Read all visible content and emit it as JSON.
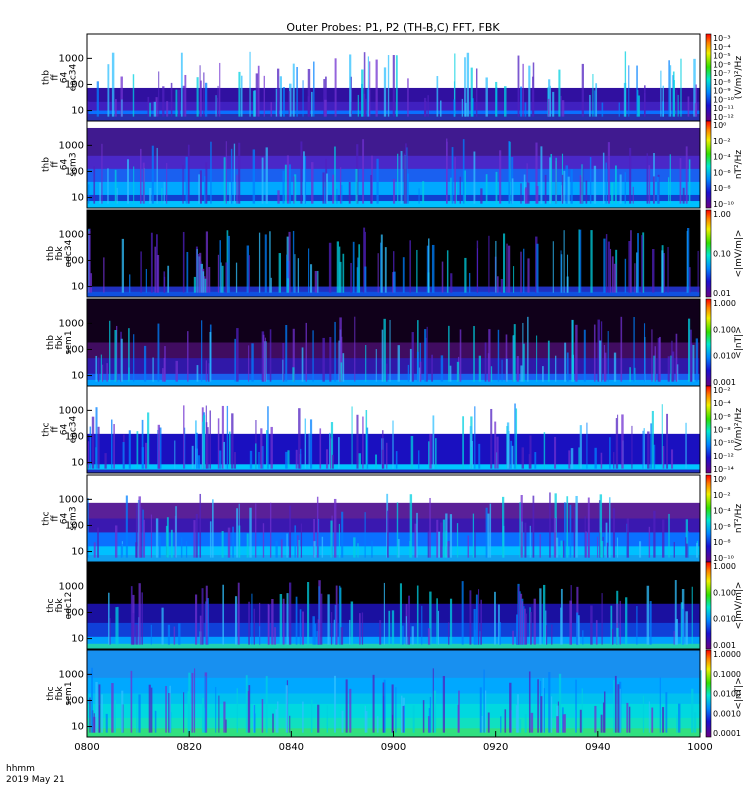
{
  "chart_data": {
    "type": "heatmap",
    "title": "Outer Probes: P1, P2 (TH-B,C) FFT, FBK",
    "x_ticks": [
      "0800",
      "0820",
      "0840",
      "0900",
      "0920",
      "0940",
      "1000"
    ],
    "footer": {
      "line1": "hhmm",
      "line2": "2019 May 21"
    },
    "colors": {
      "background": "#000000",
      "foreground": "#000000"
    },
    "panels": [
      {
        "id": "thb-ff-eac34",
        "label": [
          "thb",
          "ff",
          "64",
          "eac34"
        ],
        "y_ticks": [
          "1000",
          "100",
          "10"
        ],
        "colorbar_label": "(V/m)²/Hz",
        "colorbar_ticks": [
          "10⁻³",
          "10⁻⁴",
          "10⁻⁵",
          "10⁻⁶",
          "10⁻⁷",
          "10⁻⁸",
          "10⁻⁹",
          "10⁻¹⁰",
          "10⁻¹¹",
          "10⁻¹²"
        ]
      },
      {
        "id": "thb-ff-scm3",
        "label": [
          "thb",
          "ff",
          "64",
          "scm3"
        ],
        "y_ticks": [
          "1000",
          "100",
          "10"
        ],
        "colorbar_label": "nT²/Hz",
        "colorbar_ticks": [
          "10⁰",
          "10⁻²",
          "10⁻⁴",
          "10⁻⁶",
          "10⁻⁸",
          "10⁻¹⁰"
        ]
      },
      {
        "id": "thb-fbk-edc34",
        "label": [
          "thb",
          "fbk",
          "edc34"
        ],
        "y_ticks": [
          "1000",
          "100",
          "10"
        ],
        "colorbar_label": "<|mV/m|>",
        "colorbar_ticks": [
          "1.00",
          "0.10",
          "0.01"
        ]
      },
      {
        "id": "thb-fbk-scm1",
        "label": [
          "thb",
          "fbk",
          "scm1"
        ],
        "y_ticks": [
          "1000",
          "100",
          "10"
        ],
        "colorbar_label": "<|nT|>",
        "colorbar_ticks": [
          "1.000",
          "0.100",
          "0.010",
          "0.001"
        ]
      },
      {
        "id": "thc-ff-eac34",
        "label": [
          "thc",
          "ff",
          "64",
          "eac34"
        ],
        "y_ticks": [
          "1000",
          "100",
          "10"
        ],
        "colorbar_label": "(V/m)²/Hz",
        "colorbar_ticks": [
          "10⁻²",
          "10⁻⁴",
          "10⁻⁶",
          "10⁻⁸",
          "10⁻¹⁰",
          "10⁻¹²",
          "10⁻¹⁴"
        ]
      },
      {
        "id": "thc-ff-scm3",
        "label": [
          "thc",
          "ff",
          "64",
          "scm3"
        ],
        "y_ticks": [
          "1000",
          "100",
          "10"
        ],
        "colorbar_label": "nT²/Hz",
        "colorbar_ticks": [
          "10⁰",
          "10⁻²",
          "10⁻⁴",
          "10⁻⁶",
          "10⁻⁸",
          "10⁻¹⁰"
        ]
      },
      {
        "id": "thc-fbk-edc12",
        "label": [
          "thc",
          "fbk",
          "edc12"
        ],
        "y_ticks": [
          "1000",
          "100",
          "10"
        ],
        "colorbar_label": "<|mV/m|>",
        "colorbar_ticks": [
          "1.000",
          "0.100",
          "0.010",
          "0.001"
        ]
      },
      {
        "id": "thc-fbk-scm1",
        "label": [
          "thc",
          "fbk",
          "scm1"
        ],
        "y_ticks": [
          "1000",
          "100",
          "10"
        ],
        "colorbar_label": "<|nT|>",
        "colorbar_ticks": [
          "1.0000",
          "0.1000",
          "0.0100",
          "0.0010",
          "0.0001"
        ]
      }
    ]
  }
}
